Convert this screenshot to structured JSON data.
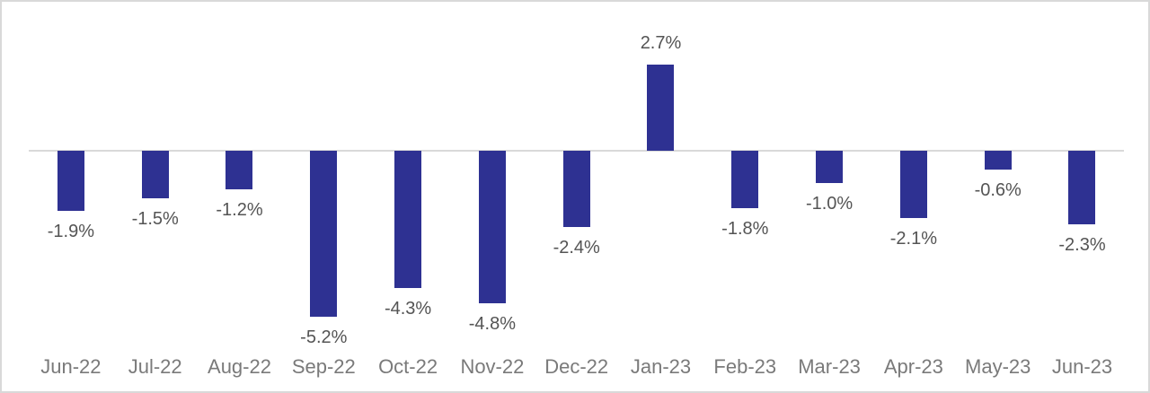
{
  "chart_data": {
    "type": "bar",
    "title": "",
    "xlabel": "",
    "ylabel": "",
    "categories": [
      "Jun-22",
      "Jul-22",
      "Aug-22",
      "Sep-22",
      "Oct-22",
      "Nov-22",
      "Dec-22",
      "Jan-23",
      "Feb-23",
      "Mar-23",
      "Apr-23",
      "May-23",
      "Jun-23"
    ],
    "values": [
      -1.9,
      -1.5,
      -1.2,
      -5.2,
      -4.3,
      -4.8,
      -2.4,
      2.7,
      -1.8,
      -1.0,
      -2.1,
      -0.6,
      -2.3
    ],
    "value_labels": [
      "-1.9%",
      "-1.5%",
      "-1.2%",
      "-5.2%",
      "-4.3%",
      "-4.8%",
      "-2.4%",
      "2.7%",
      "-1.8%",
      "-1.0%",
      "-2.1%",
      "-0.6%",
      "-2.3%"
    ],
    "ylim": [
      -5.6,
      3.3
    ],
    "grid": false,
    "legend": false,
    "data_labels": true,
    "colors": {
      "bar": "#2e3192",
      "zero_line": "#d9d9d9",
      "value_label": "#545454",
      "axis_label": "#7a7a7a",
      "border": "#d9d9d9",
      "background": "#ffffff"
    }
  }
}
